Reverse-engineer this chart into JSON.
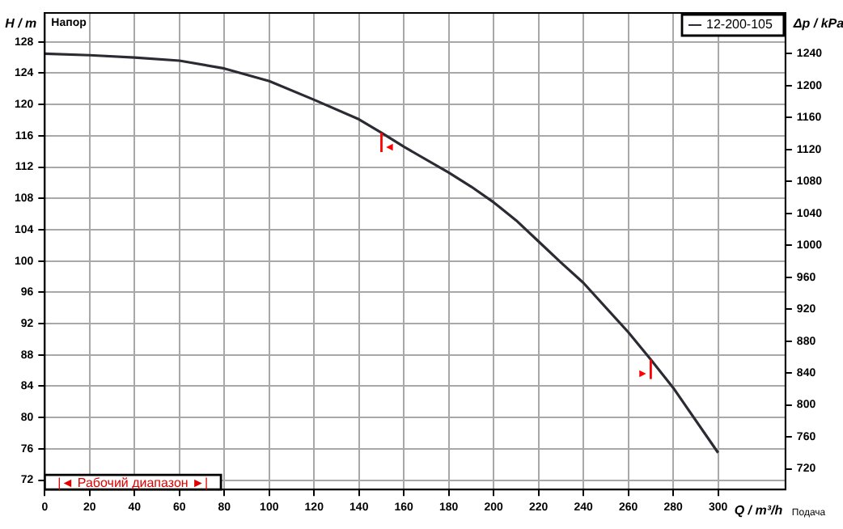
{
  "chart_data": {
    "type": "line",
    "xlabel": "Q / m³/h",
    "ylabel": "H / m",
    "y2label": "Δp / kPa",
    "x": [
      0,
      20,
      40,
      60,
      80,
      100,
      120,
      140,
      150,
      160,
      180,
      190,
      200,
      210,
      220,
      230,
      240,
      260,
      270,
      280,
      300
    ],
    "series": [
      {
        "name": "12-200-105",
        "color": "#2b2b33",
        "values": [
          126.5,
          126.3,
          126,
          125.6,
          124.6,
          123,
          120.6,
          118.1,
          116.4,
          114.6,
          111.3,
          109.5,
          107.5,
          105.2,
          102.5,
          99.8,
          97.2,
          90.9,
          87.4,
          83.8,
          75.5
        ]
      }
    ],
    "xlim": [
      0,
      330
    ],
    "xticks": [
      0,
      20,
      40,
      60,
      80,
      100,
      120,
      140,
      160,
      180,
      200,
      220,
      240,
      260,
      280,
      300
    ],
    "ylim": [
      70.8,
      131.7
    ],
    "yticks": [
      72,
      76,
      80,
      84,
      88,
      92,
      96,
      100,
      104,
      108,
      112,
      116,
      120,
      124,
      128
    ],
    "y2lim": [
      694,
      1291
    ],
    "y2ticks": [
      720,
      760,
      800,
      840,
      880,
      920,
      960,
      1000,
      1040,
      1080,
      1120,
      1160,
      1200,
      1240
    ],
    "ref_lines": [
      {
        "axis": "x",
        "value": 150,
        "label": "◄",
        "color": "#ff0000"
      },
      {
        "axis": "x",
        "value": 270,
        "label": "►",
        "color": "#ff0000"
      }
    ],
    "annotations": [
      "Напор",
      "Подача",
      "|◄ Рабочий диапазон ►|"
    ],
    "grid": true,
    "legend": "top right",
    "marker": "none",
    "line_style": "solid"
  }
}
